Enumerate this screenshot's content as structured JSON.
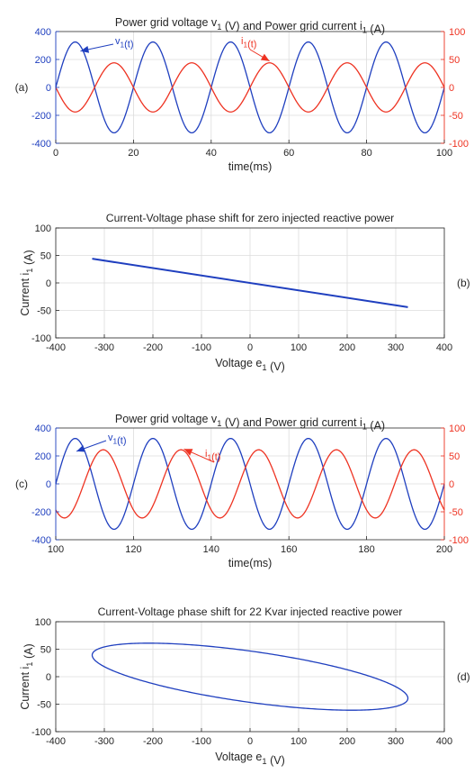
{
  "colors": {
    "voltage": "#1f3fbf",
    "current": "#ee3322",
    "axis": "#262626",
    "grid": "#dcdcdc"
  },
  "chart_data": [
    {
      "panel_label": "(a)",
      "type": "line",
      "title": "Power grid voltage v",
      "title_sub": "1",
      "title_mid": " (V) and Power grid current i",
      "title_sub2": "1",
      "title_end": " (A)",
      "xlabel": "time(ms)",
      "xlim": [
        0,
        100
      ],
      "ylim_left": [
        -400,
        400
      ],
      "ylim_right": [
        -100,
        100
      ],
      "xticks": [
        "0",
        "20",
        "40",
        "60",
        "80",
        "100"
      ],
      "yticks_left": [
        "400",
        "200",
        "0",
        "-200",
        "-400"
      ],
      "yticks_right": [
        "100",
        "50",
        "0",
        "-50",
        "-100"
      ],
      "grid": true,
      "series": [
        {
          "name": "v",
          "sub": "1",
          "suffix": "(t)",
          "axis": "left",
          "amplitude": 325,
          "frequency_hz": 50,
          "phase_deg": 0
        },
        {
          "name": "i",
          "sub": "1",
          "suffix": "(t)",
          "axis": "right",
          "amplitude": 44,
          "frequency_hz": 50,
          "phase_deg": 180
        }
      ]
    },
    {
      "panel_label": "(b)",
      "type": "line",
      "title": "Current-Voltage phase shift for zero injected reactive power",
      "xlabel": "Voltage e",
      "xlabel_sub": "1",
      "xlabel_end": " (V)",
      "ylabel": "Current i",
      "ylabel_sub": "1",
      "ylabel_end": " (A)",
      "xlim": [
        -400,
        400
      ],
      "ylim": [
        -100,
        100
      ],
      "xticks": [
        "-400",
        "-300",
        "-200",
        "-100",
        "0",
        "100",
        "200",
        "300",
        "400"
      ],
      "yticks": [
        "100",
        "50",
        "0",
        "-50",
        "-100"
      ],
      "grid": true,
      "x": [
        -325,
        325
      ],
      "y": [
        44,
        -44
      ]
    },
    {
      "panel_label": "(c)",
      "type": "line",
      "title": "Power grid voltage v",
      "title_sub": "1",
      "title_mid": " (V) and Power grid current i",
      "title_sub2": "1",
      "title_end": " (A)",
      "xlabel": "time(ms)",
      "xlim": [
        100,
        200
      ],
      "ylim_left": [
        -400,
        400
      ],
      "ylim_right": [
        -100,
        100
      ],
      "xticks": [
        "100",
        "120",
        "140",
        "160",
        "180",
        "200"
      ],
      "yticks_left": [
        "400",
        "200",
        "0",
        "-200",
        "-400"
      ],
      "yticks_right": [
        "100",
        "50",
        "0",
        "-50",
        "-100"
      ],
      "grid": true,
      "series": [
        {
          "name": "v",
          "sub": "1",
          "suffix": "(t)",
          "axis": "left",
          "amplitude": 325,
          "frequency_hz": 50,
          "phase_deg": 0
        },
        {
          "name": "i",
          "sub": "1",
          "suffix": "(t)",
          "axis": "right",
          "amplitude": 61,
          "frequency_hz": 50,
          "phase_deg": -130
        }
      ]
    },
    {
      "panel_label": "(d)",
      "type": "line",
      "title": "Current-Voltage phase shift for 22 Kvar injected reactive power",
      "xlabel": "Voltage e",
      "xlabel_sub": "1",
      "xlabel_end": " (V)",
      "ylabel": "Current i",
      "ylabel_sub": "1",
      "ylabel_end": " (A)",
      "xlim": [
        -400,
        400
      ],
      "ylim": [
        -100,
        100
      ],
      "xticks": [
        "-400",
        "-300",
        "-200",
        "-100",
        "0",
        "100",
        "200",
        "300",
        "400"
      ],
      "yticks": [
        "100",
        "50",
        "0",
        "-50",
        "-100"
      ],
      "grid": true,
      "voltage_amplitude": 325,
      "current_amplitude": 61,
      "phase_deg": -130
    }
  ]
}
